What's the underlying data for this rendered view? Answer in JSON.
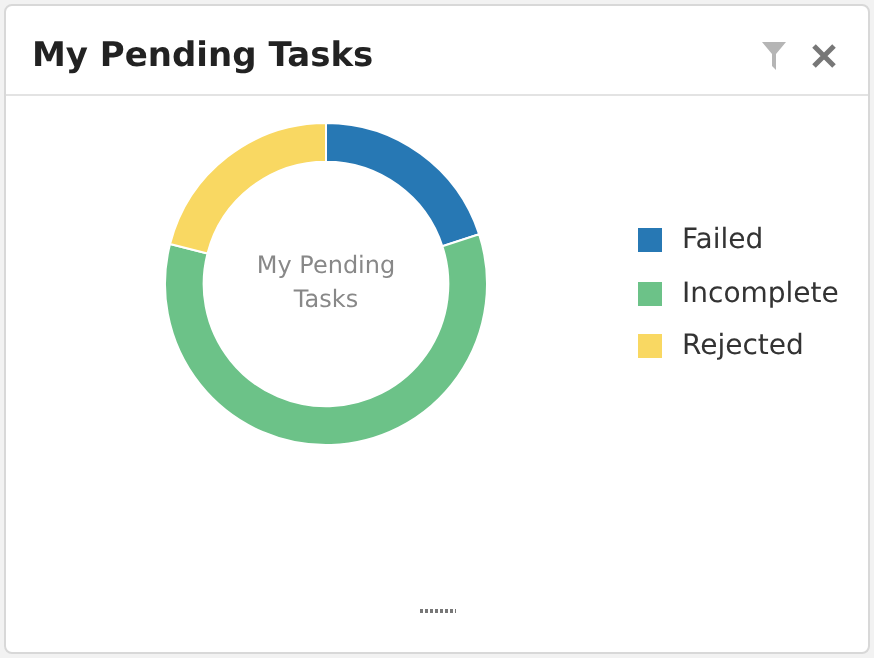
{
  "chart_data": {
    "type": "donut",
    "title": "My Pending Tasks",
    "categories": [
      "Failed",
      "Incomplete",
      "Rejected"
    ],
    "values": [
      20,
      59,
      21
    ],
    "colors": [
      "#2778b4",
      "#6cc288",
      "#f9d862"
    ],
    "annotations": [
      "My Pending Tasks"
    ],
    "legend": "right"
  }
}
